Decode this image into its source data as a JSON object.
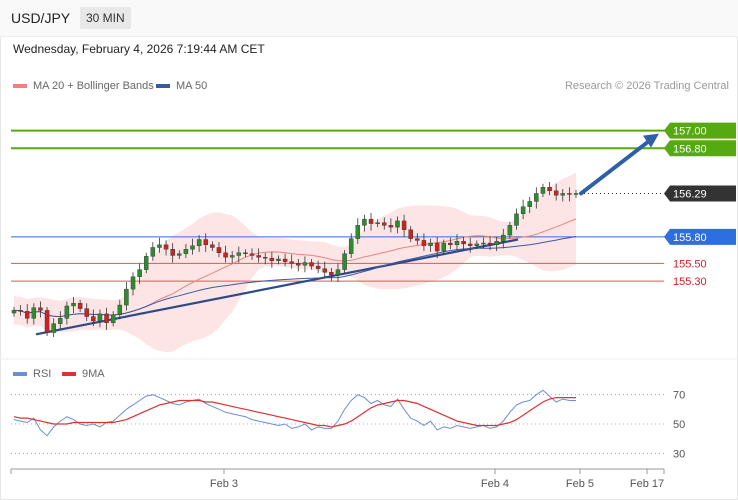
{
  "header": {
    "symbol": "USD/JPY",
    "timeframe": "30 MIN"
  },
  "datetime": "Wednesday, February 4, 2026 7:19:44 AM CET",
  "legend": {
    "ma20": "MA 20 + Bollinger Bands",
    "ma50": "MA 50",
    "copyright": "Research © 2026 Trading Central"
  },
  "colors": {
    "ma20": "#f08080",
    "ma50": "#3a5aa0",
    "bollinger_fill": "#fde1e1",
    "bull": "#2e8b2e",
    "bear": "#cc2222",
    "resistance": "#55aa11",
    "support_strong": "#2d6fe0",
    "support": "#e05555",
    "last_price": "#333333",
    "rsi": "#6a8fd8",
    "rsi_ma": "#e03030"
  },
  "chart_data": [
    {
      "type": "candlestick",
      "title": "USD/JPY",
      "timeframe": "30 MIN",
      "x_ticks": [
        "Feb 3",
        "Feb 4",
        "Feb 5",
        "Feb 17"
      ],
      "ylim": [
        154.5,
        157.3
      ],
      "last_price": 156.29,
      "levels": [
        {
          "label": "157.00",
          "value": 157.0,
          "kind": "resistance"
        },
        {
          "label": "156.80",
          "value": 156.8,
          "kind": "resistance"
        },
        {
          "label": "156.29",
          "value": 156.29,
          "kind": "last"
        },
        {
          "label": "155.80",
          "value": 155.8,
          "kind": "pivot"
        },
        {
          "label": "155.50",
          "value": 155.5,
          "kind": "support"
        },
        {
          "label": "155.30",
          "value": 155.3,
          "kind": "support"
        }
      ],
      "series": [
        {
          "name": "MA 20 + Bollinger Bands"
        },
        {
          "name": "MA 50"
        }
      ],
      "closes": [
        154.97,
        154.96,
        154.88,
        155.0,
        154.97,
        154.72,
        154.82,
        154.88,
        155.02,
        155.05,
        154.99,
        154.9,
        154.85,
        154.93,
        154.83,
        154.92,
        155.03,
        155.21,
        155.35,
        155.43,
        155.58,
        155.68,
        155.71,
        155.66,
        155.59,
        155.61,
        155.66,
        155.7,
        155.77,
        155.71,
        155.68,
        155.62,
        155.57,
        155.59,
        155.62,
        155.61,
        155.59,
        155.57,
        155.56,
        155.53,
        155.55,
        155.52,
        155.5,
        155.48,
        155.51,
        155.47,
        155.44,
        155.4,
        155.37,
        155.43,
        155.61,
        155.78,
        155.93,
        156.0,
        155.95,
        155.96,
        155.93,
        155.91,
        155.98,
        155.88,
        155.78,
        155.76,
        155.7,
        155.73,
        155.64,
        155.73,
        155.71,
        155.75,
        155.72,
        155.7,
        155.72,
        155.73,
        155.71,
        155.75,
        155.82,
        155.93,
        156.06,
        156.14,
        156.2,
        156.29,
        156.36,
        156.32,
        156.27,
        156.29,
        156.28,
        156.29
      ],
      "rsi": {
        "series": [
          {
            "name": "RSI"
          },
          {
            "name": "9MA"
          }
        ],
        "ylim": [
          20,
          80
        ],
        "ticks": [
          30,
          50,
          70
        ],
        "values": [
          53,
          52,
          51,
          54,
          46,
          42,
          48,
          52,
          55,
          53,
          50,
          49,
          50,
          48,
          51,
          52,
          56,
          60,
          63,
          66,
          69,
          70,
          68,
          66,
          64,
          63,
          65,
          66,
          67,
          64,
          62,
          60,
          58,
          57,
          56,
          55,
          53,
          52,
          51,
          50,
          49,
          50,
          47,
          48,
          50,
          46,
          48,
          47,
          47,
          52,
          60,
          66,
          70,
          68,
          64,
          66,
          63,
          62,
          67,
          60,
          54,
          52,
          49,
          52,
          46,
          48,
          47,
          49,
          48,
          47,
          48,
          49,
          47,
          48,
          52,
          58,
          63,
          65,
          66,
          70,
          73,
          69,
          65,
          67,
          66,
          66
        ],
        "ma9": [
          55,
          54,
          54,
          53,
          52,
          51,
          50,
          50,
          50,
          51,
          51,
          51,
          51,
          51,
          51,
          51,
          52,
          53,
          55,
          57,
          59,
          61,
          63,
          64,
          65,
          66,
          66,
          66,
          66,
          65,
          65,
          64,
          63,
          62,
          61,
          60,
          59,
          58,
          57,
          56,
          55,
          54,
          53,
          52,
          51,
          50,
          49,
          49,
          48,
          49,
          50,
          52,
          55,
          58,
          61,
          63,
          64,
          65,
          66,
          66,
          65,
          64,
          62,
          60,
          58,
          56,
          54,
          52,
          51,
          50,
          49,
          49,
          49,
          49,
          50,
          51,
          53,
          56,
          59,
          62,
          65,
          67,
          68,
          68,
          68,
          68
        ]
      }
    }
  ]
}
